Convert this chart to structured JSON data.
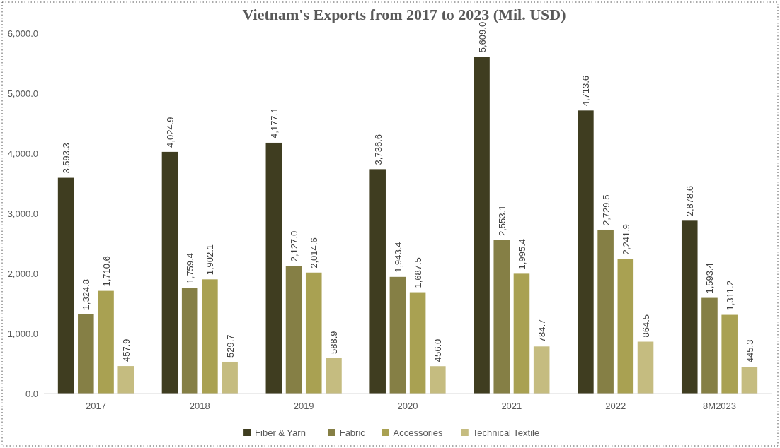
{
  "chart_data": {
    "type": "bar",
    "title": "Vietnam's Exports from 2017 to 2023 (Mil. USD)",
    "categories": [
      "2017",
      "2018",
      "2019",
      "2020",
      "2021",
      "2022",
      "8M2023"
    ],
    "series": [
      {
        "name": "Fiber & Yarn",
        "color": "#3f3d20",
        "values": [
          3593.3,
          4024.9,
          4177.1,
          3736.6,
          5609.0,
          4713.6,
          2878.6
        ],
        "value_labels": [
          "3,593.3",
          "4,024.9",
          "4,177.1",
          "3,736.6",
          "5,609.0",
          "4,713.6",
          "2,878.6"
        ]
      },
      {
        "name": "Fabric",
        "color": "#857f45",
        "values": [
          1324.8,
          1759.4,
          2127.0,
          1943.4,
          2553.1,
          2729.5,
          1593.4
        ],
        "value_labels": [
          "1,324.8",
          "1,759.4",
          "2,127.0",
          "1,943.4",
          "2,553.1",
          "2,729.5",
          "1,593.4"
        ]
      },
      {
        "name": "Accessories",
        "color": "#a9a152",
        "values": [
          1710.6,
          1902.1,
          2014.6,
          1687.5,
          1995.4,
          2241.9,
          1311.2
        ],
        "value_labels": [
          "1,710.6",
          "1,902.1",
          "2,014.6",
          "1,687.5",
          "1,995.4",
          "2,241.9",
          "1,311.2"
        ]
      },
      {
        "name": "Technical Textile",
        "color": "#c5bc80",
        "values": [
          457.9,
          529.7,
          588.9,
          456.0,
          784.7,
          864.5,
          445.3
        ],
        "value_labels": [
          "457.9",
          "529.7",
          "588.9",
          "456.0",
          "784.7",
          "864.5",
          "445.3"
        ]
      }
    ],
    "ylim": [
      0,
      6000
    ],
    "yticks": [
      {
        "value": 0,
        "label": "0.0"
      },
      {
        "value": 1000,
        "label": "1,000.0"
      },
      {
        "value": 2000,
        "label": "2,000.0"
      },
      {
        "value": 3000,
        "label": "3,000.0"
      },
      {
        "value": 4000,
        "label": "4,000.0"
      },
      {
        "value": 5000,
        "label": "5,000.0"
      },
      {
        "value": 6000,
        "label": "6,000.0"
      }
    ],
    "legend": "bottom"
  }
}
